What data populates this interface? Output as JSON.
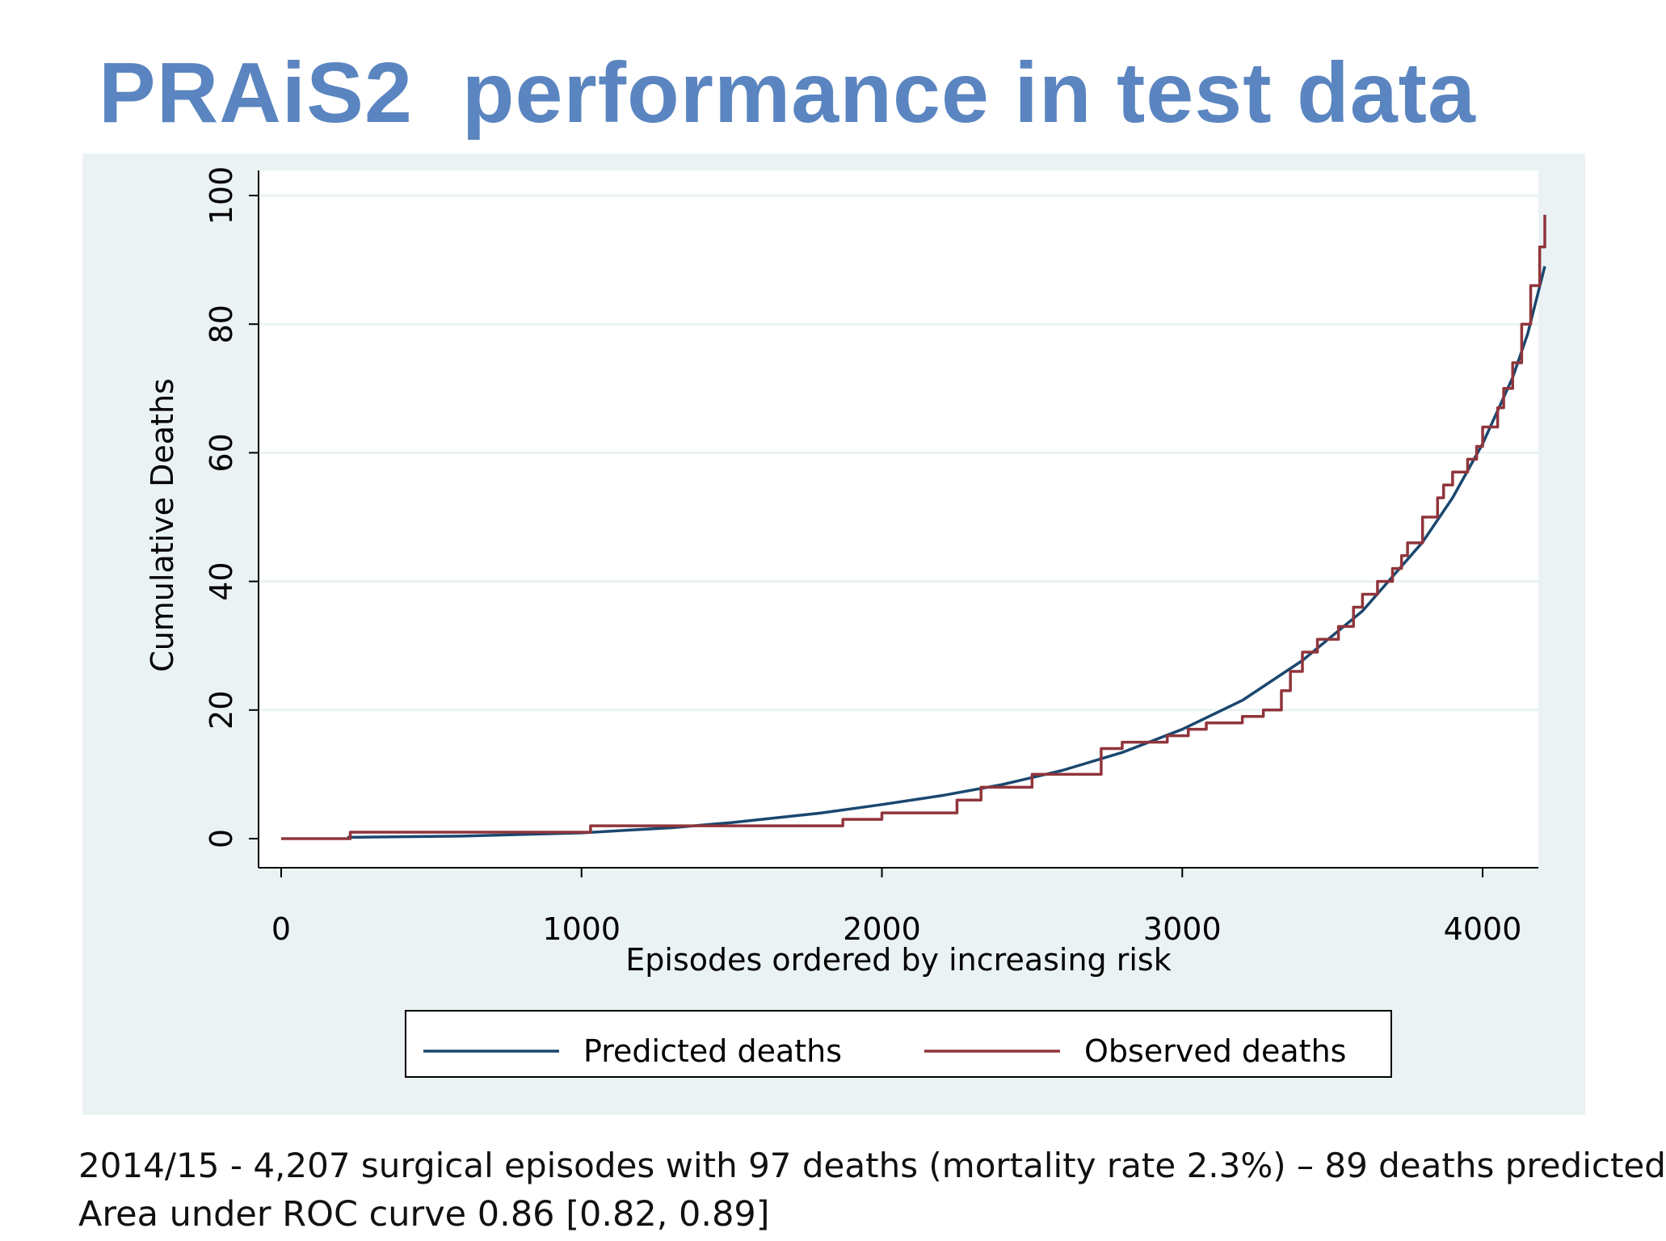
{
  "slide": {
    "title": "PRAiS2  performance in test data",
    "footnotes": [
      "2014/15 - 4,207 surgical episodes with 97 deaths (mortality rate 2.3%) – 89 deaths predicted",
      "Area under ROC curve 0.86 [0.82, 0.89]"
    ]
  },
  "colors": {
    "title": "#5a85c0",
    "panel_background": "#eaf2f3",
    "plot_background": "#ffffff",
    "gridline": "#eaf2f3",
    "predicted": "#1a476f",
    "observed": "#90353b"
  },
  "chart_data": {
    "type": "line",
    "title": "",
    "xlabel": "Episodes ordered by increasing risk",
    "ylabel": "Cumulative Deaths",
    "xlim": [
      0,
      4207
    ],
    "ylim": [
      0,
      100
    ],
    "xticks": [
      0,
      1000,
      2000,
      3000,
      4000
    ],
    "yticks": [
      0,
      20,
      40,
      60,
      80,
      100
    ],
    "grid": true,
    "legend_position": "bottom",
    "series": [
      {
        "name": "Predicted deaths",
        "color": "#1a476f",
        "x": [
          220,
          600,
          1000,
          1300,
          1500,
          1800,
          2000,
          2200,
          2400,
          2600,
          2800,
          3000,
          3200,
          3400,
          3600,
          3800,
          3900,
          4000,
          4100,
          4150,
          4207
        ],
        "y": [
          0.2,
          0.4,
          0.9,
          1.7,
          2.5,
          4.0,
          5.3,
          6.7,
          8.4,
          10.6,
          13.4,
          17.0,
          21.5,
          27.7,
          35.4,
          46.1,
          53.0,
          61.4,
          71.7,
          78.5,
          89
        ]
      },
      {
        "name": "Observed deaths",
        "color": "#90353b",
        "step": true,
        "x": [
          0,
          230,
          1030,
          1870,
          2000,
          2250,
          2330,
          2500,
          2730,
          2800,
          2950,
          3020,
          3080,
          3200,
          3270,
          3330,
          3360,
          3400,
          3450,
          3520,
          3570,
          3600,
          3650,
          3700,
          3730,
          3750,
          3800,
          3850,
          3870,
          3900,
          3950,
          3980,
          4000,
          4050,
          4070,
          4100,
          4130,
          4160,
          4190,
          4207
        ],
        "y": [
          0,
          1,
          2,
          3,
          4,
          6,
          8,
          10,
          14,
          15,
          16,
          17,
          18,
          19,
          20,
          23,
          26,
          29,
          31,
          33,
          36,
          38,
          40,
          42,
          44,
          46,
          50,
          53,
          55,
          57,
          59,
          61,
          64,
          67,
          70,
          74,
          80,
          86,
          92,
          97
        ]
      }
    ]
  }
}
